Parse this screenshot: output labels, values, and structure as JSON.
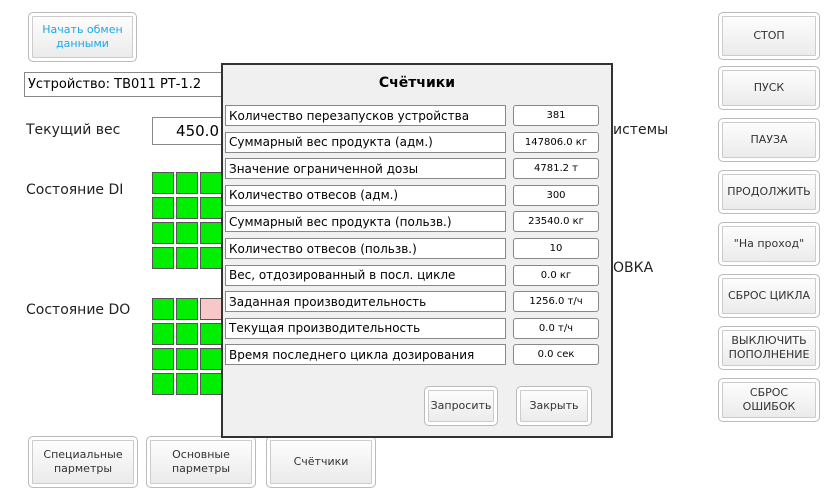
{
  "main": {
    "start_button": "Начать обмен данными",
    "device": "Устройство: ТВ011 РТ-1.2",
    "weight_label": "Текущий вес",
    "weight_value": "450.0",
    "di_label": "Состояние DI",
    "do_label": "Состояние DO",
    "hidden_text_1": "истемы",
    "hidden_text_2": "ОВКА"
  },
  "right_buttons": [
    "СТОП",
    "ПУСК",
    "ПАУЗА",
    "ПРОДОЛЖИТЬ",
    "\"На проход\"",
    "СБРОС ЦИКЛА",
    "ВЫКЛЮЧИТЬ ПОПОЛНЕНИЕ",
    "СБРОС ОШИБОК"
  ],
  "bottom_buttons": [
    "Специальные парметры",
    "Основные парметры",
    "Счётчики"
  ],
  "dialog": {
    "title": "Счётчики",
    "rows": [
      [
        "Количество перезапусков устройства",
        "381"
      ],
      [
        "Суммарный вес продукта (адм.)",
        "147806.0 кг"
      ],
      [
        "Значение ограниченной дозы",
        "4781.2 т"
      ],
      [
        "Количество отвесов (адм.)",
        "300"
      ],
      [
        "Суммарный вес продукта (пользв.)",
        "23540.0 кг"
      ],
      [
        "Количество отвесов (пользв.)",
        "10"
      ],
      [
        "Вес, отдозированный в посл. цикле",
        "0.0 кг"
      ],
      [
        "Заданная производительность",
        "1256.0 т/ч"
      ],
      [
        "Текущая производительность",
        "0.0 т/ч"
      ],
      [
        "Время последнего цикла дозирования",
        "0.0 сек"
      ]
    ],
    "buttons": [
      "Запросить",
      "Закрыть"
    ]
  }
}
